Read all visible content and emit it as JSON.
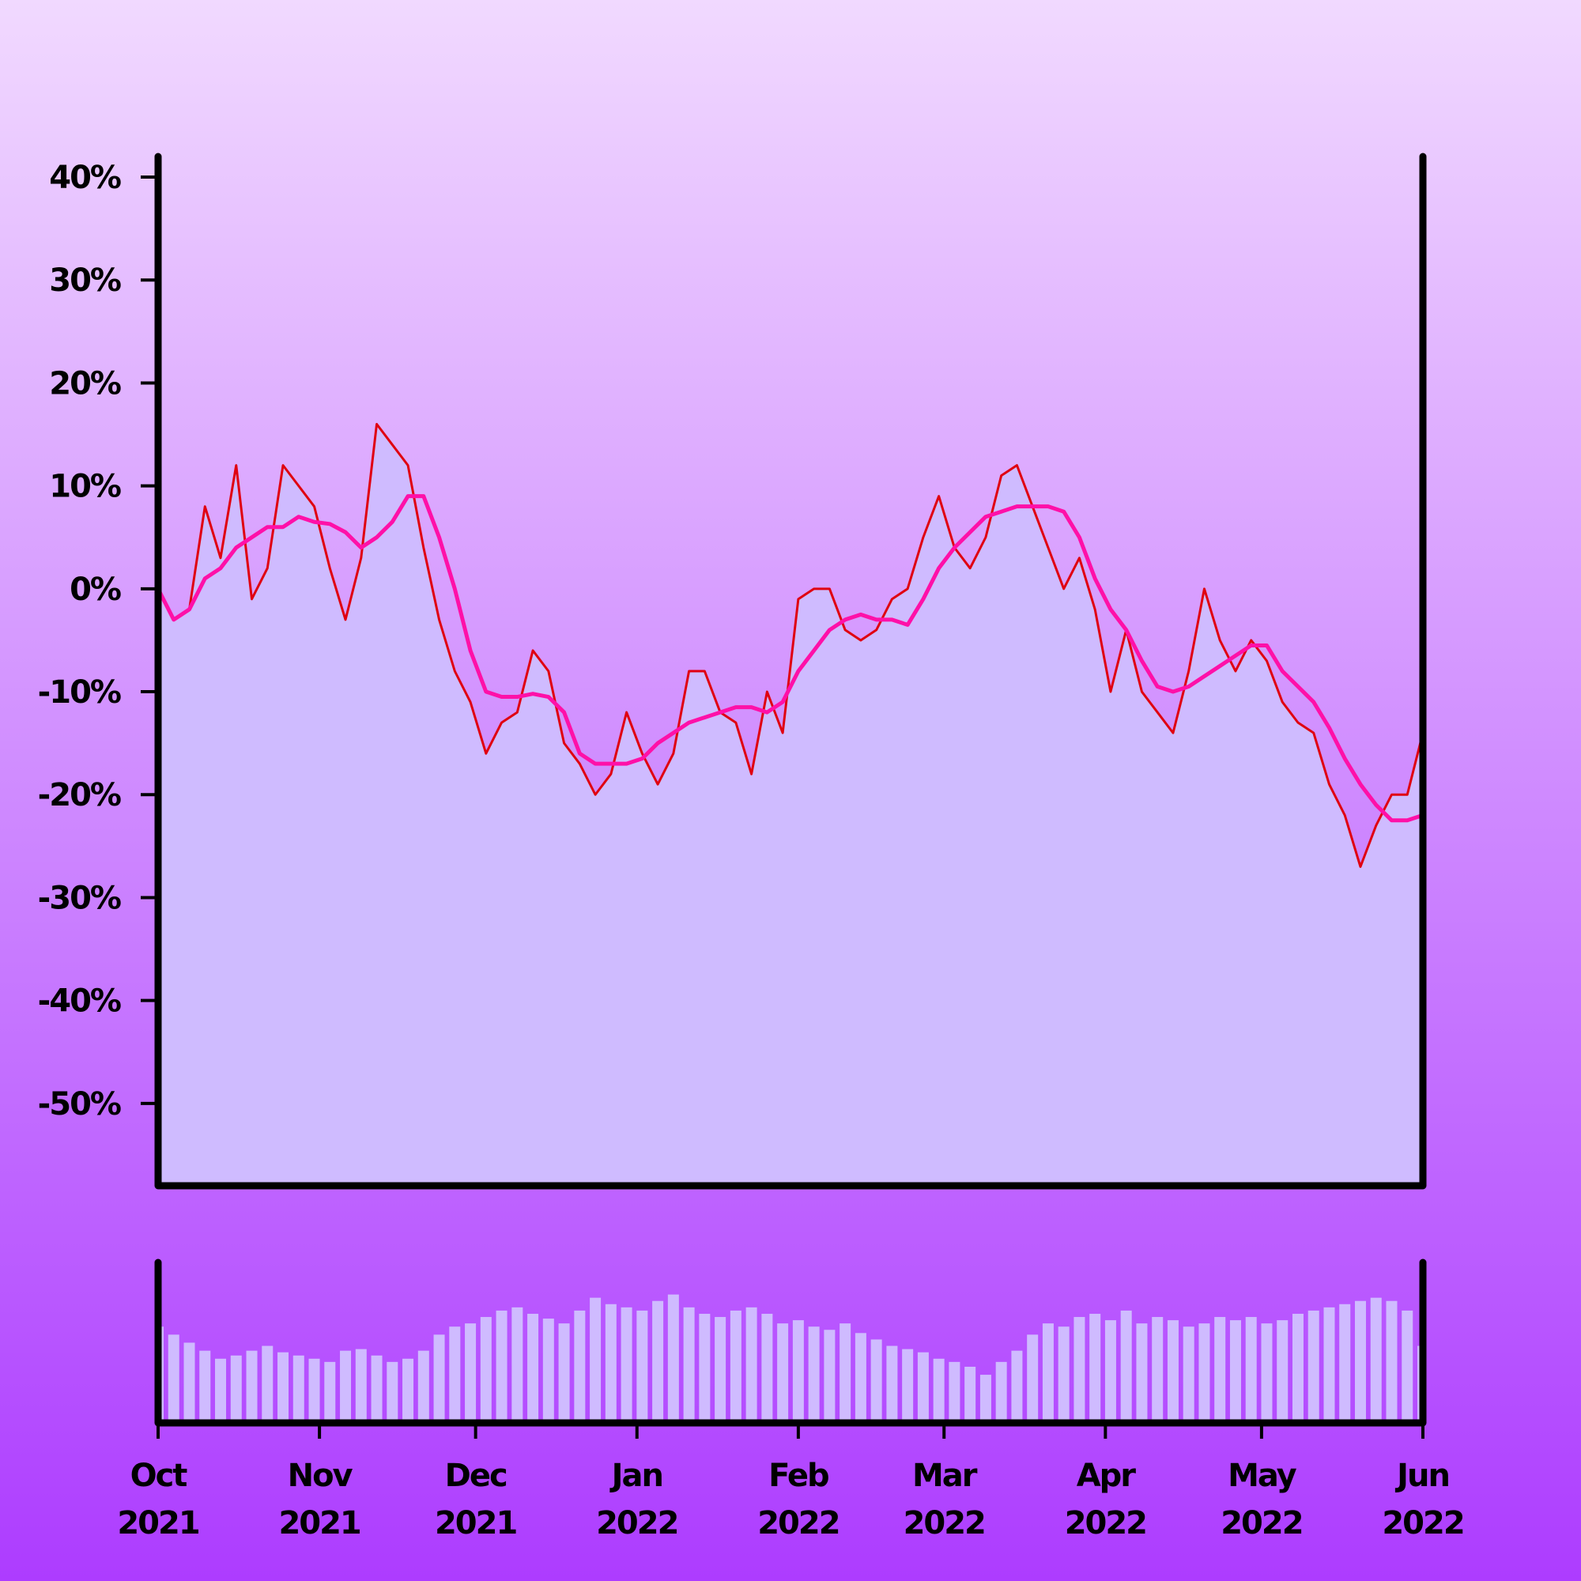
{
  "chart_data": [
    {
      "type": "line",
      "x": [
        0,
        3,
        6,
        9,
        12,
        15,
        18,
        21,
        24,
        27,
        30,
        33,
        36,
        39,
        42,
        45,
        48,
        51,
        54,
        57,
        60,
        63,
        66,
        69,
        72,
        75,
        78,
        81,
        84,
        87,
        90,
        93,
        96,
        99,
        102,
        105,
        108,
        111,
        114,
        117,
        120,
        123,
        126,
        129,
        132,
        135,
        138,
        141,
        144,
        147,
        150,
        153,
        156,
        159,
        162,
        165,
        168,
        171,
        174,
        177,
        180,
        183,
        186,
        189,
        192,
        195,
        198,
        201,
        204,
        207,
        210,
        213,
        216,
        219,
        222,
        225,
        228,
        231,
        234,
        237,
        240,
        243
      ],
      "xlim": [
        0,
        243
      ],
      "ylim": [
        -58,
        42
      ],
      "yticks": [
        {
          "value": 40,
          "label": "40%"
        },
        {
          "value": 30,
          "label": "30%"
        },
        {
          "value": 20,
          "label": "20%"
        },
        {
          "value": 10,
          "label": "10%"
        },
        {
          "value": 0,
          "label": "0%"
        },
        {
          "value": -10,
          "label": "-10%"
        },
        {
          "value": -20,
          "label": "-20%"
        },
        {
          "value": -30,
          "label": "-30%"
        },
        {
          "value": -40,
          "label": "-40%"
        },
        {
          "value": -50,
          "label": "-50%"
        }
      ],
      "area_color": "#cfbbff",
      "series": [
        {
          "color": "#e00010",
          "values": [
            0,
            -3,
            -2,
            8,
            3,
            12,
            -1,
            2,
            12,
            10,
            8,
            2,
            -3,
            3,
            16,
            14,
            12,
            4,
            -3,
            -8,
            -11,
            -16,
            -13,
            -12,
            -6,
            -8,
            -15,
            -17,
            -20,
            -18,
            -12,
            -16,
            -19,
            -16,
            -8,
            -8,
            -12,
            -13,
            -18,
            -10,
            -14,
            -1,
            0,
            0,
            -4,
            -5,
            -4,
            -1,
            0,
            5,
            9,
            4,
            2,
            5,
            11,
            12,
            8,
            4,
            0,
            3,
            -2,
            -10,
            -4,
            -10,
            -12,
            -14,
            -8,
            0,
            -5,
            -8,
            -5,
            -7,
            -11,
            -13,
            -14,
            -19,
            -22,
            -27,
            -23,
            -20,
            -20,
            -14
          ]
        },
        {
          "color": "#ff10a8",
          "values": [
            0,
            -3,
            -2,
            1,
            2,
            4,
            5,
            6,
            6,
            7,
            6.5,
            6.3,
            5.5,
            4,
            5,
            6.5,
            9,
            9,
            5,
            0,
            -6,
            -10,
            -10.5,
            -10.5,
            -10.2,
            -10.5,
            -12,
            -16,
            -17,
            -17,
            -17,
            -16.5,
            -15,
            -14,
            -13,
            -12.5,
            -12,
            -11.5,
            -11.5,
            -12,
            -11,
            -8,
            -6,
            -4,
            -3,
            -2.5,
            -3,
            -3,
            -3.5,
            -1,
            2,
            4,
            5.5,
            7,
            7.5,
            8,
            8,
            8,
            7.5,
            5,
            1,
            -2,
            -4,
            -7,
            -9.5,
            -10,
            -9.5,
            -8.5,
            -7.5,
            -6.5,
            -5.5,
            -5.5,
            -8,
            -9.5,
            -11,
            -13.5,
            -16.5,
            -19,
            -21,
            -22.5,
            -22.5,
            -22
          ]
        }
      ]
    },
    {
      "type": "bar",
      "x": [
        0,
        3,
        6,
        9,
        12,
        15,
        18,
        21,
        24,
        27,
        30,
        33,
        36,
        39,
        42,
        45,
        48,
        51,
        54,
        57,
        60,
        63,
        66,
        69,
        72,
        75,
        78,
        81,
        84,
        87,
        90,
        93,
        96,
        99,
        102,
        105,
        108,
        111,
        114,
        117,
        120,
        123,
        126,
        129,
        132,
        135,
        138,
        141,
        144,
        147,
        150,
        153,
        156,
        159,
        162,
        165,
        168,
        171,
        174,
        177,
        180,
        183,
        186,
        189,
        192,
        195,
        198,
        201,
        204,
        207,
        210,
        213,
        216,
        219,
        222,
        225,
        228,
        231,
        234,
        237,
        240,
        243
      ],
      "xlim": [
        0,
        243
      ],
      "ylim": [
        0,
        100
      ],
      "color": "#cfbbff",
      "xticks": [
        {
          "value": 0,
          "label": "Oct 2021"
        },
        {
          "value": 31,
          "label": "Nov 2021"
        },
        {
          "value": 61,
          "label": "Dec 2021"
        },
        {
          "value": 92,
          "label": "Jan 2022"
        },
        {
          "value": 123,
          "label": "Feb 2022"
        },
        {
          "value": 151,
          "label": "Mar 2022"
        },
        {
          "value": 182,
          "label": "Apr 2022"
        },
        {
          "value": 212,
          "label": "May 2022"
        },
        {
          "value": 243,
          "label": "Jun 2022"
        }
      ],
      "values": [
        60,
        55,
        50,
        45,
        40,
        42,
        45,
        48,
        44,
        42,
        40,
        38,
        45,
        46,
        42,
        38,
        40,
        45,
        55,
        60,
        62,
        66,
        70,
        72,
        68,
        65,
        62,
        70,
        78,
        74,
        72,
        70,
        76,
        80,
        72,
        68,
        66,
        70,
        72,
        68,
        62,
        64,
        60,
        58,
        62,
        56,
        52,
        48,
        46,
        44,
        40,
        38,
        35,
        30,
        38,
        45,
        55,
        62,
        60,
        66,
        68,
        64,
        70,
        62,
        66,
        64,
        60,
        62,
        66,
        64,
        66,
        62,
        64,
        68,
        70,
        72,
        74,
        76,
        78,
        76,
        70,
        48
      ]
    }
  ]
}
